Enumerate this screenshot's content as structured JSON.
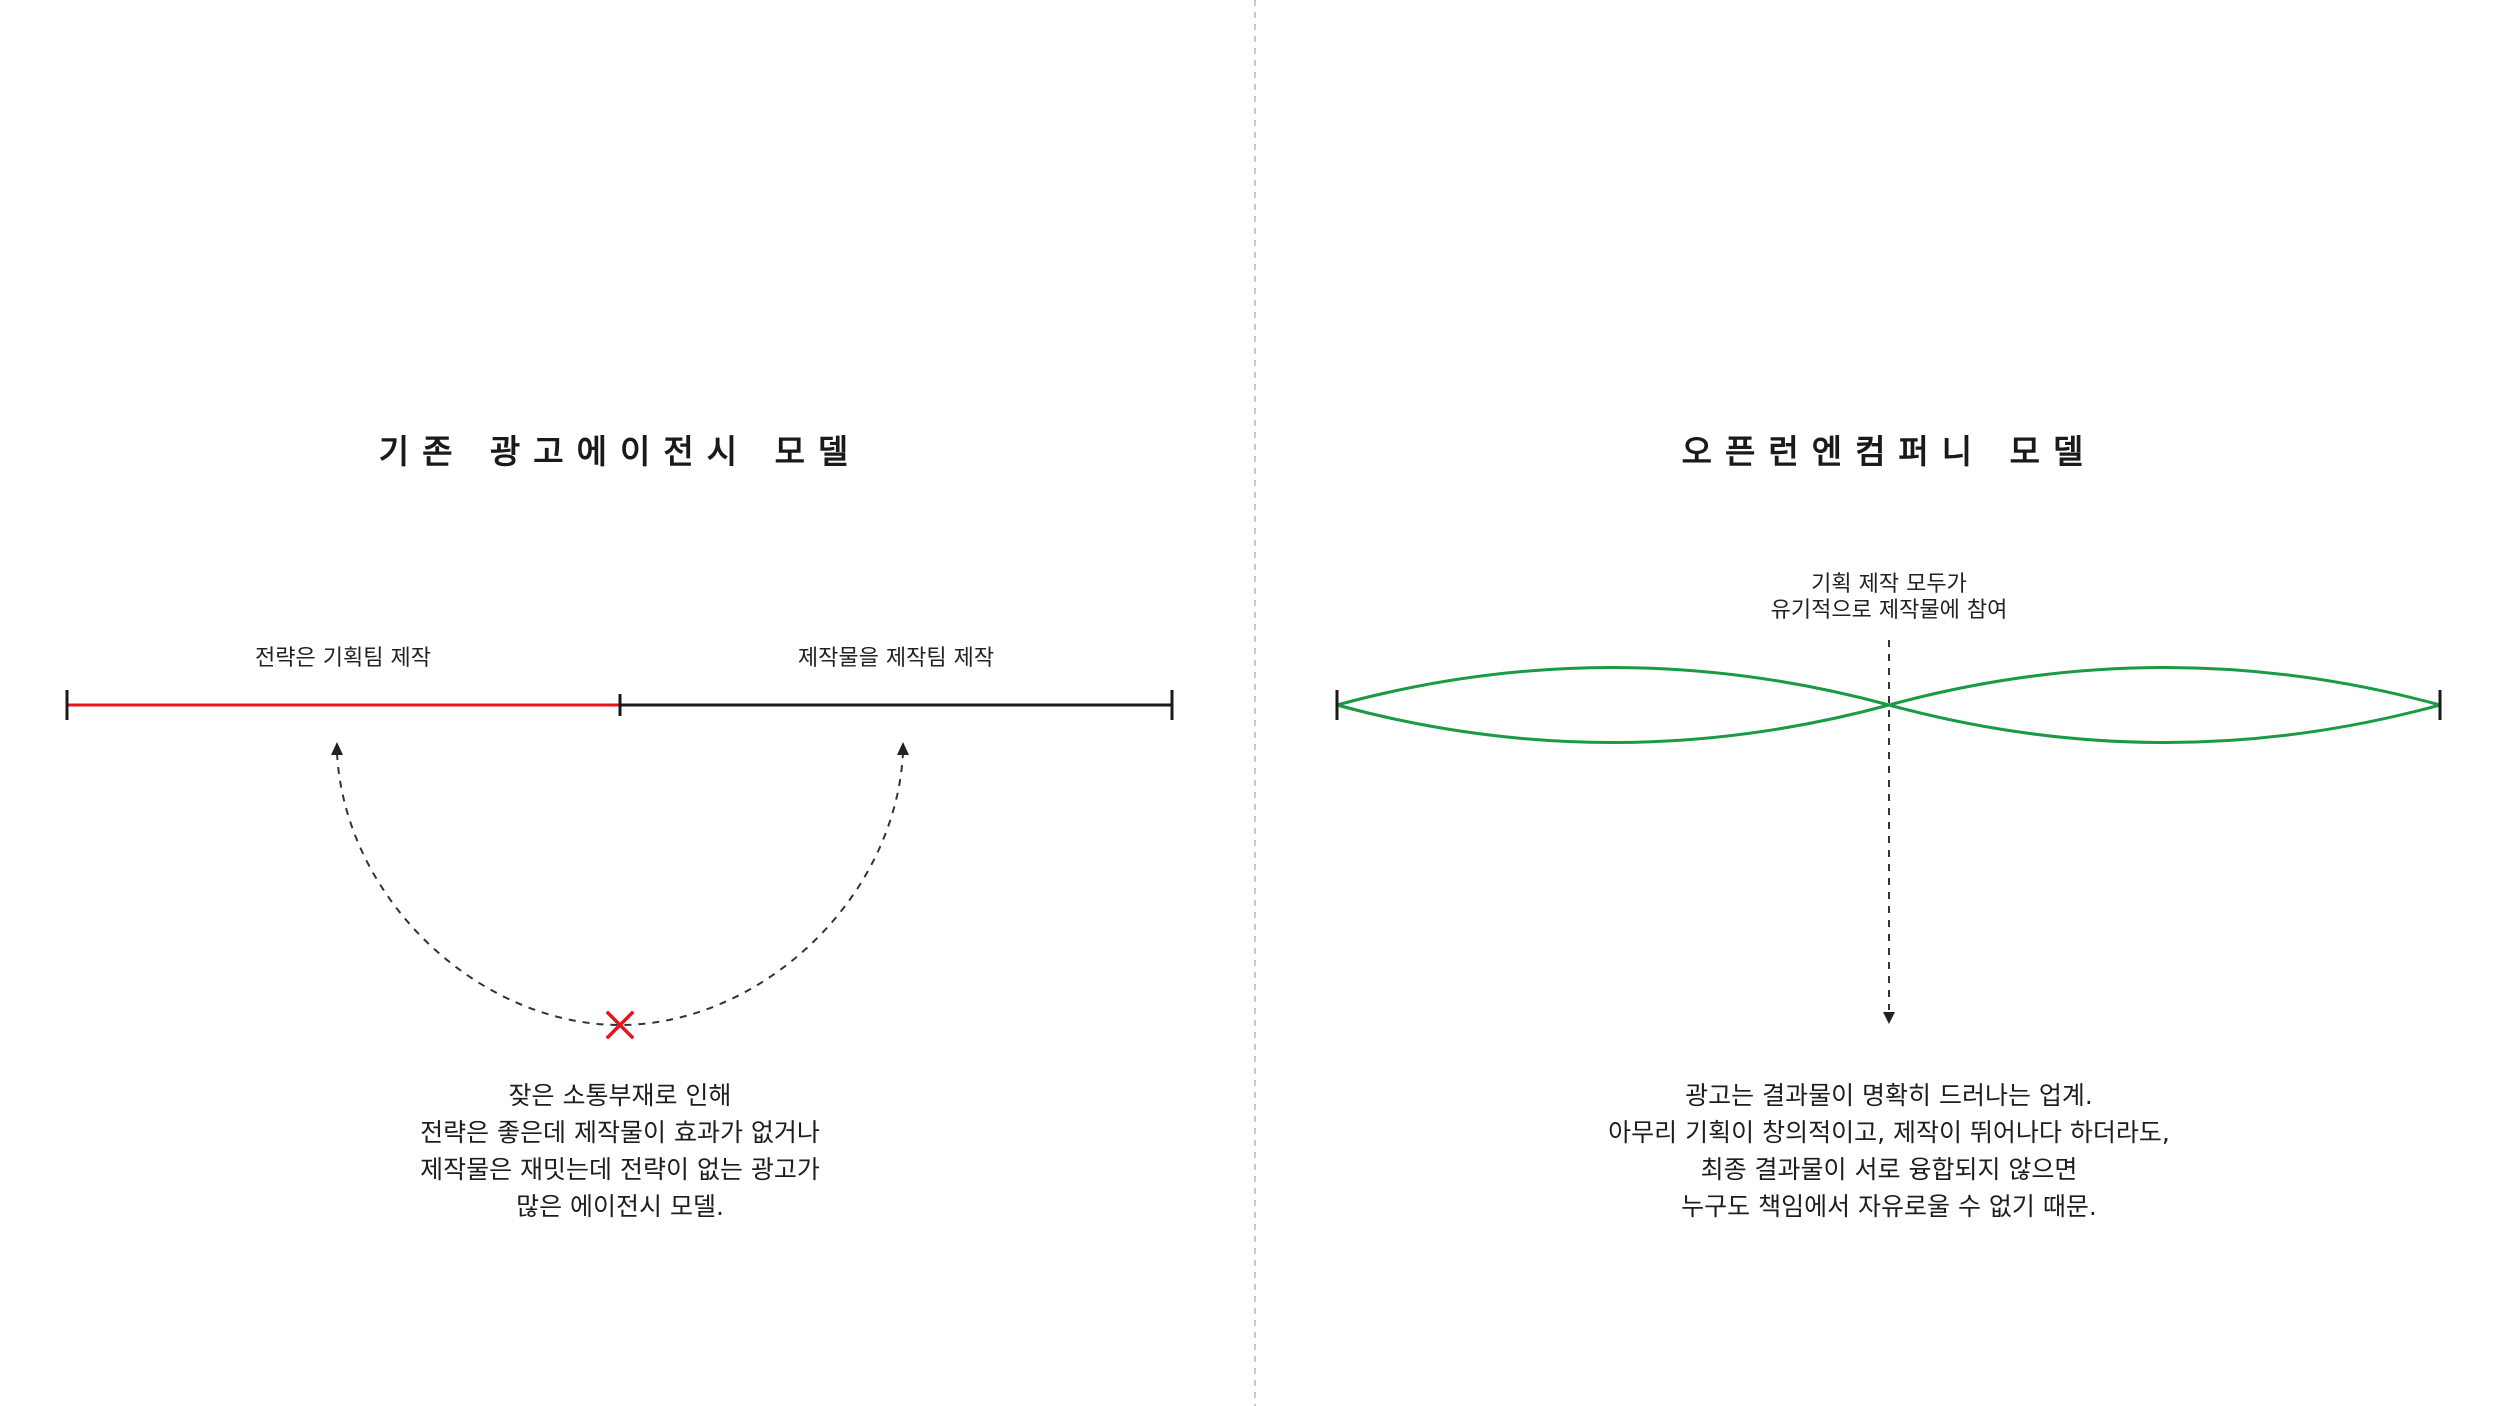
{
  "colors": {
    "red": "#e8141c",
    "black": "#1a1a1a",
    "green": "#1a9a43",
    "divider": "#c8c8c8",
    "dash": "#333333"
  },
  "left_panel": {
    "title": "기존 광고에이전시 모델",
    "segment_labels": [
      "전략은 기획팀 제작",
      "제작물을 제작팀 제작"
    ],
    "caption_lines": [
      "잦은 소통부재로 인해",
      "전략은 좋은데 제작물이 효과가 없거나",
      "제작물은 재밋는데 전략이 없는 광고가",
      "많은 에이전시 모델."
    ],
    "icons": [
      "cross-mark-icon"
    ]
  },
  "right_panel": {
    "title": "오픈런엔컴퍼니 모델",
    "center_label_lines": [
      "기획 제작 모두가",
      "유기적으로 제작물에 참여"
    ],
    "caption_lines": [
      "광고는 결과물이 명확히 드러나는 업계.",
      "아무리 기획이 창의적이고, 제작이 뛰어나다 하더라도,",
      "최종 결과물이 서로 융합되지 않으면",
      "누구도 책임에서 자유로울 수 없기 때문."
    ]
  }
}
